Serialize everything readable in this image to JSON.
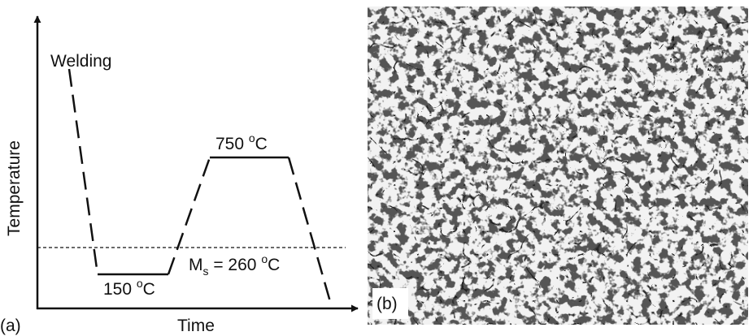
{
  "panel_a": {
    "tag": "(a)",
    "y_axis_label": "Temperature",
    "x_axis_label": "Time",
    "welding_label": "Welding",
    "peak_label": {
      "number": "750 ",
      "degree": "o",
      "unit": "C"
    },
    "low_label": {
      "number": "150 ",
      "degree": "o",
      "unit": "C"
    },
    "ms_label": {
      "symbol": "M",
      "subscript": "s",
      "equals": " = 260 ",
      "degree": "o",
      "unit": "C"
    }
  },
  "panel_b": {
    "tag": "(b)"
  }
}
